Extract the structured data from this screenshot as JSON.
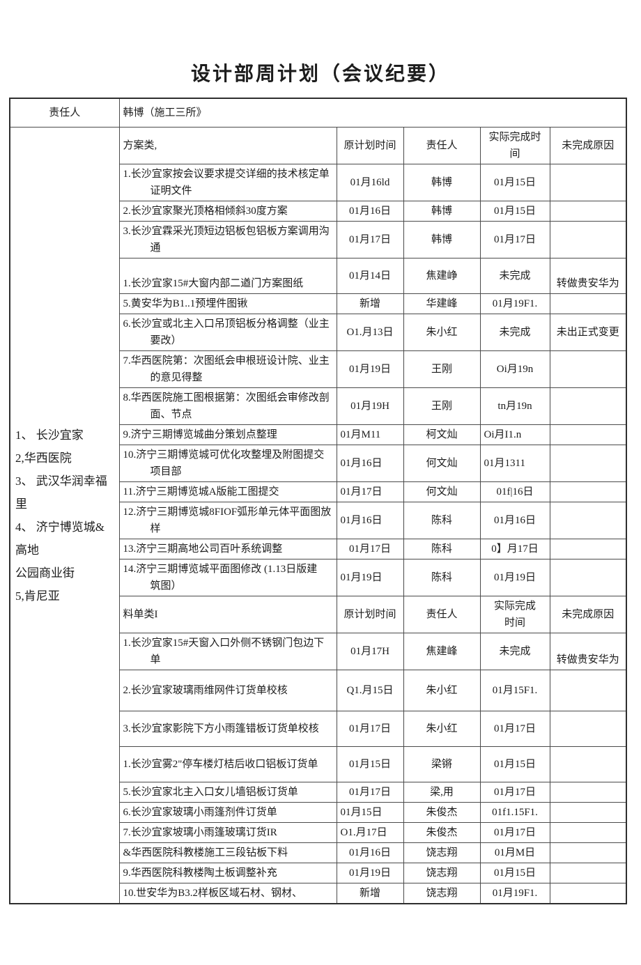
{
  "page": {
    "title": "设计部周计划（会议纪要）"
  },
  "table": {
    "owner_row": {
      "label": "责任人",
      "value": "韩博（施工三所》"
    },
    "projects": {
      "lines": [
        "1、 长沙宜家",
        "2,华西医院",
        "3、 武汉华润幸福里",
        "4、 济宁博览城&高地",
        "公园商业街",
        "5,肯尼亚"
      ]
    },
    "sections": [
      {
        "header": {
          "label": "方案类,",
          "planned": "原计划时间",
          "owner": "责任人",
          "actual_lines": [
            "实际完成时间"
          ],
          "reason": "未完成原因"
        },
        "rows": [
          {
            "task_lines": [
              "1.长沙宜家按会议要求提交详细的技术核定单",
              "证明文件"
            ],
            "planned": "01月16ld",
            "owner": "韩博",
            "actual": "01月15日",
            "reason": "",
            "flags": []
          },
          {
            "task_lines": [
              "2.长沙宜家聚光顶格相倾斜30度方案"
            ],
            "planned": "01月16日",
            "owner": "韩博",
            "actual": "01月15日",
            "reason": "",
            "flags": []
          },
          {
            "task_lines": [
              "3.长沙宜霖采光顶短边铝板包铝板方案调用沟",
              "通"
            ],
            "planned": "01月17日",
            "owner": "韩博",
            "actual": "01月17日",
            "reason": "",
            "flags": []
          },
          {
            "task_lines": [
              "1.长沙宜家15#大窗内部二遒门方案图纸"
            ],
            "planned": "01月14日",
            "owner": "焦建峥",
            "actual": "未完成",
            "reason": "转做贵安华为",
            "flags": [
              "tall",
              "task-bottom",
              "reason-bottom"
            ]
          },
          {
            "task_lines": [
              "5.黄安华为B1..1预埋件图锹"
            ],
            "planned": "新增",
            "owner": "华建峰",
            "actual": "01月19F1.",
            "reason": "",
            "flags": []
          },
          {
            "task_lines": [
              "6.长沙宜或北主入口吊顶铝板分格调整（业主",
              "要改）"
            ],
            "planned": "O1.月13日",
            "owner": "朱小红",
            "actual": "未完成",
            "reason": "未出正式变更",
            "flags": []
          },
          {
            "task_lines": [
              "7.华西医院第：次图纸会申根班设计院、业主",
              "的意见得整"
            ],
            "planned": "01月19日",
            "owner": "王刚",
            "actual": "Oi月19n",
            "reason": "",
            "flags": []
          },
          {
            "task_lines": [
              "8.华西医院施工图根据第：次图纸会审修改剖",
              "面、节点"
            ],
            "planned": "01月19H",
            "owner": "王刚",
            "actual": "tn月19n",
            "reason": "",
            "flags": []
          },
          {
            "task_lines": [
              "9.济宁三期博览城曲分策划点整理"
            ],
            "planned": "01月M11",
            "owner": "柯文灿",
            "actual": "Oi月I1.n",
            "reason": "",
            "flags": [
              "planned-left",
              "actual-left"
            ]
          },
          {
            "task_lines": [
              "10.济宁三期博览城可优化攻整埋及附图提交",
              "项目部"
            ],
            "planned": "01月16日",
            "owner": "何文灿",
            "actual": "01月1311",
            "reason": "",
            "flags": [
              "planned-left",
              "actual-left"
            ]
          },
          {
            "task_lines": [
              "11.济宁三期博览城A版能工图提交"
            ],
            "planned": "01月17日",
            "owner": "何文灿",
            "actual": "01f|16日",
            "reason": "",
            "flags": [
              "planned-left"
            ]
          },
          {
            "task_lines": [
              "12.济宁三期博览城8FIOF弧形单元体平面图放",
              "样"
            ],
            "planned": "01月16日",
            "owner": "陈科",
            "actual": "01月16日",
            "reason": "",
            "flags": [
              "planned-left"
            ]
          },
          {
            "task_lines": [
              "13.济宁三期高地公司百叶系统调整"
            ],
            "planned": "01月17日",
            "owner": "陈科",
            "actual": "0】月17日",
            "reason": "",
            "flags": []
          },
          {
            "task_lines": [
              "14.济宁三期博览城平面图修改 (1.13日版建",
              "筑图）"
            ],
            "planned": "01月19日",
            "owner": "陈科",
            "actual": "01月19日",
            "reason": "",
            "flags": [
              "planned-left"
            ]
          }
        ]
      },
      {
        "header": {
          "label": "料单类I",
          "planned": "原计划时间",
          "owner": "责任人",
          "actual_lines": [
            "实际完成",
            "时间"
          ],
          "reason": "未完成原因"
        },
        "rows": [
          {
            "task_lines": [
              "1.长沙宜家15#天窗入口外侧不锈钢门包边下",
              "单"
            ],
            "planned": "01月17H",
            "owner": "焦建峰",
            "actual": "未完成",
            "reason": "转做贵安华为",
            "flags": [
              "reason-bottom"
            ]
          },
          {
            "task_lines": [
              "2.长沙宜家玻璃雨维网件订货单校核"
            ],
            "planned": "Q1.月15日",
            "owner": "朱小红",
            "actual": "01月15F1.",
            "reason": "",
            "flags": [
              "taller"
            ]
          },
          {
            "task_lines": [
              "3.长沙宜家影院下方小雨篷错板订货单校核"
            ],
            "planned": "01月17日",
            "owner": "朱小红",
            "actual": "01月17日",
            "reason": "",
            "flags": [
              "tall"
            ]
          },
          {
            "task_lines": [
              "1.长沙宜雾2\"停车楼灯桔后收口铝板订货单"
            ],
            "planned": "01月15日",
            "owner": "梁锵",
            "actual": "01月15日",
            "reason": "",
            "flags": [
              "tall"
            ]
          },
          {
            "task_lines": [
              "5.长沙宜家北主入口女儿墙铝板订货单"
            ],
            "planned": "01月17日",
            "owner": "梁,用",
            "actual": "01月17日",
            "reason": "",
            "flags": []
          },
          {
            "task_lines": [
              "6.长沙宜家玻璃小雨篷剂件订货单"
            ],
            "planned": "01月15日",
            "owner": "朱俊杰",
            "actual": "01f1.15F1.",
            "reason": "",
            "flags": [
              "planned-left"
            ]
          },
          {
            "task_lines": [
              "7.长沙宜家坡璃小雨篷玻璃订货IR"
            ],
            "planned": "O1.月17日",
            "owner": "朱俊杰",
            "actual": "01月17日",
            "reason": "",
            "flags": [
              "planned-left"
            ]
          },
          {
            "task_lines": [
              "&华西医院科教楼施工三段钻板下料"
            ],
            "planned": "01月16日",
            "owner": "饶志翔",
            "actual": "01月M日",
            "reason": "",
            "flags": []
          },
          {
            "task_lines": [
              "9.华西医院科教楼陶土板调整补充"
            ],
            "planned": "01月19日",
            "owner": "饶志翔",
            "actual": "01月15日",
            "reason": "",
            "flags": []
          },
          {
            "task_lines": [
              "10.世安华为B3.2样板区域石材、钢材、"
            ],
            "planned": "新增",
            "owner": "饶志翔",
            "actual": "01月19F1.",
            "reason": "",
            "flags": []
          }
        ]
      }
    ]
  }
}
